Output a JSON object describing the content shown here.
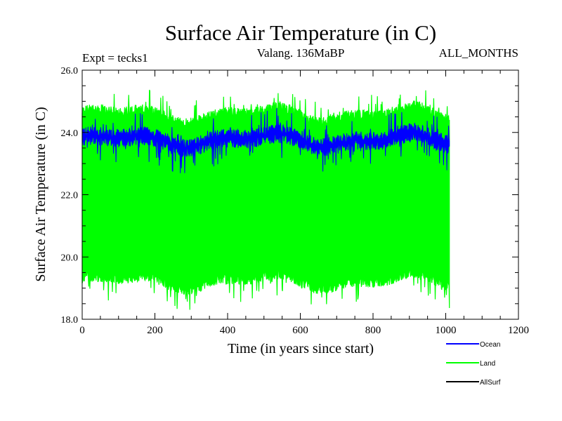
{
  "chart_data": {
    "type": "line",
    "title": "Surface Air Temperature (in C)",
    "subtitle_left": "Expt = tecks1",
    "subtitle_center": "Valang. 136MaBP",
    "subtitle_right": "ALL_MONTHS",
    "xlabel": "Time (in years since start)",
    "ylabel": "Surface Air Temperature (in C)",
    "xlim": [
      0,
      1200
    ],
    "ylim": [
      18.0,
      26.0
    ],
    "x_ticks": [
      0,
      200,
      400,
      600,
      800,
      1000,
      1200
    ],
    "x_tick_labels": [
      "0",
      "200",
      "400",
      "600",
      "800",
      "1000",
      "1200"
    ],
    "y_ticks": [
      18.0,
      20.0,
      22.0,
      24.0,
      26.0
    ],
    "y_tick_labels": [
      "18.0",
      "20.0",
      "22.0",
      "24.0",
      "26.0"
    ],
    "x_start": 0,
    "x_end": 1010,
    "series": [
      {
        "name": "Land",
        "color": "#00ff00",
        "band_low": 18.5,
        "band_high": 25.3,
        "mean": 21.5
      },
      {
        "name": "Ocean",
        "color": "#0000ff",
        "band_low": 22.9,
        "band_high": 24.6,
        "mean": 23.5
      },
      {
        "name": "AllSurf",
        "color": "#000000"
      }
    ],
    "legend": [
      {
        "label": "Ocean",
        "color": "#0000ff"
      },
      {
        "label": "Land",
        "color": "#00ff00"
      },
      {
        "label": "AllSurf",
        "color": "#000000"
      }
    ]
  }
}
